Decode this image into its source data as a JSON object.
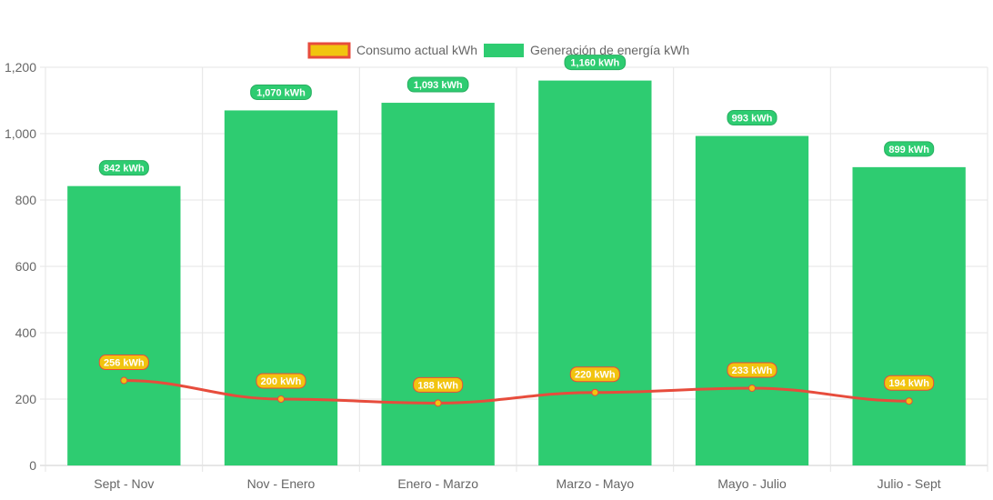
{
  "chart_data": {
    "type": "bar",
    "categories": [
      "Sept - Nov",
      "Nov - Enero",
      "Enero - Marzo",
      "Marzo - Mayo",
      "Mayo - Julio",
      "Julio - Sept"
    ],
    "series": [
      {
        "name": "Consumo actual kWh",
        "type": "line",
        "values": [
          256,
          200,
          188,
          220,
          233,
          194
        ],
        "labels": [
          "256 kWh",
          "200 kWh",
          "188 kWh",
          "220 kWh",
          "233 kWh",
          "194 kWh"
        ],
        "color": "#e74c3c",
        "fill": "#f1c40f"
      },
      {
        "name": "Generación de energía kWh",
        "type": "bar",
        "values": [
          842,
          1070,
          1093,
          1160,
          993,
          899
        ],
        "labels": [
          "842 kWh",
          "1,070 kWh",
          "1,093 kWh",
          "1,160 kWh",
          "993 kWh",
          "899 kWh"
        ],
        "color": "#2ecc71"
      }
    ],
    "yticks": [
      "0",
      "200",
      "400",
      "600",
      "800",
      "1,000",
      "1,200"
    ],
    "ylim": [
      0,
      1200
    ],
    "grid": true,
    "legend": "top"
  }
}
